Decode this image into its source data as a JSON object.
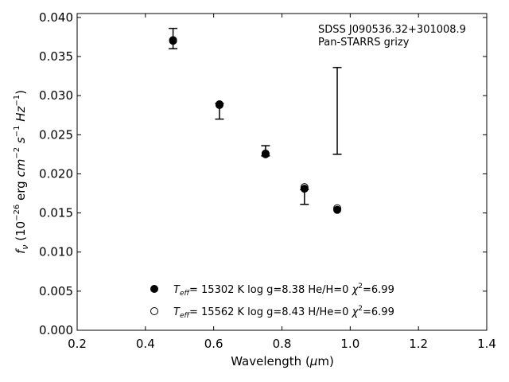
{
  "chart_data": {
    "type": "scatter",
    "xlabel": "Wavelength (μm)",
    "ylabel": "f_ν (10^-26 erg cm^-2 s^-1 Hz^-1)",
    "xlim": [
      0.2,
      1.4
    ],
    "ylim": [
      0.0,
      0.0405
    ],
    "x_ticks": [
      "0.2",
      "0.4",
      "0.6",
      "0.8",
      "1.0",
      "1.2",
      "1.4"
    ],
    "y_ticks": [
      "0.000",
      "0.005",
      "0.010",
      "0.015",
      "0.020",
      "0.025",
      "0.030",
      "0.035",
      "0.040"
    ],
    "annotations": [
      "SDSS J090536.32+301008.9",
      "Pan-STARRS grizy"
    ],
    "grid": false,
    "legend_position": "bottom-center",
    "observed": [
      {
        "x": 0.481,
        "low": 0.036,
        "high": 0.0386
      },
      {
        "x": 0.617,
        "low": 0.027,
        "high": 0.029
      },
      {
        "x": 0.752,
        "low": 0.0223,
        "high": 0.0236
      },
      {
        "x": 0.866,
        "low": 0.0161,
        "high": 0.018
      },
      {
        "x": 0.962,
        "low": 0.0225,
        "high": 0.0336
      }
    ],
    "series": [
      {
        "name": "Teff= 15302 K  log g=8.38  He/H=0  χ2=6.99",
        "marker": "filled",
        "x": [
          0.481,
          0.617,
          0.752,
          0.866,
          0.962
        ],
        "y": [
          0.037,
          0.0289,
          0.0225,
          0.0181,
          0.0154
        ]
      },
      {
        "name": "Teff= 15562 K  log g=8.43  H/He=0  χ2=6.99",
        "marker": "open",
        "x": [
          0.481,
          0.617,
          0.752,
          0.866,
          0.962
        ],
        "y": [
          0.0371,
          0.0288,
          0.0226,
          0.0183,
          0.0156
        ]
      }
    ]
  }
}
